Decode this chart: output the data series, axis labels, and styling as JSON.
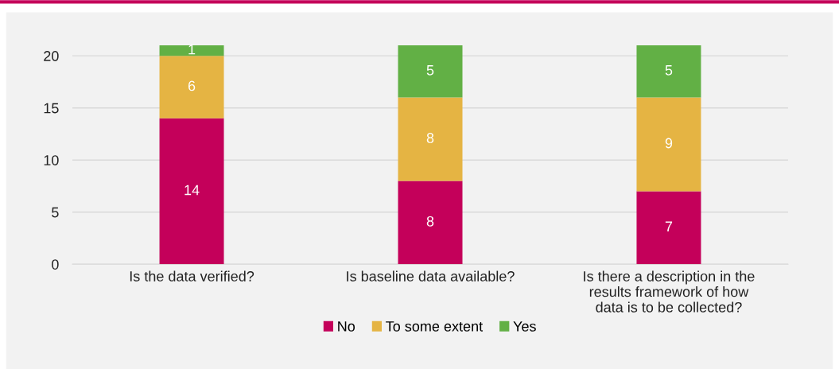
{
  "chart_data": {
    "type": "bar",
    "stacked": true,
    "categories": [
      "Is the data verified?",
      "Is baseline data available?",
      "Is there a description in the\nresults framework of how\ndata is to be collected?"
    ],
    "series": [
      {
        "name": "No",
        "color": "#c4005a",
        "values": [
          14,
          8,
          7
        ]
      },
      {
        "name": "To some extent",
        "color": "#e5b443",
        "values": [
          6,
          8,
          9
        ]
      },
      {
        "name": "Yes",
        "color": "#62b045",
        "values": [
          1,
          5,
          5
        ]
      }
    ],
    "ylim": [
      0,
      21
    ],
    "yticks": [
      0,
      5,
      10,
      15,
      20
    ],
    "grid": "y",
    "legend": "bottom",
    "data_labels": true
  }
}
